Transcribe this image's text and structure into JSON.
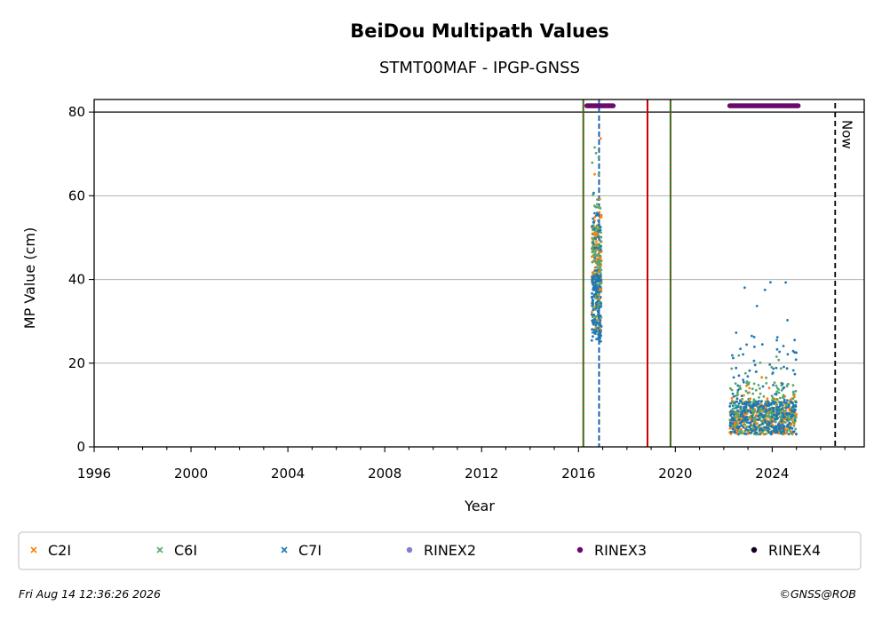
{
  "chart_data": {
    "type": "scatter",
    "title": "BeiDou Multipath Values",
    "subtitle": "STMT00MAF - IPGP-GNSS",
    "xlabel": "Year",
    "ylabel": "MP Value (cm)",
    "xlim": [
      1996.0,
      2027.8
    ],
    "ylim": [
      0,
      83
    ],
    "x_ticks": [
      "1996",
      "2000",
      "2004",
      "2008",
      "2012",
      "2016",
      "2020",
      "2024"
    ],
    "y_ticks": [
      "0",
      "20",
      "40",
      "60",
      "80"
    ],
    "grid": "horizontal",
    "legend_position": "bottom",
    "legend": [
      {
        "label": "C2I",
        "color": "#ff7f0e",
        "marker": "x"
      },
      {
        "label": "C6I",
        "color": "#55a868",
        "marker": "x"
      },
      {
        "label": "C7I",
        "color": "#1f77b4",
        "marker": "x"
      },
      {
        "label": "RINEX2",
        "color": "#7f7fcf",
        "marker": "o"
      },
      {
        "label": "RINEX3",
        "color": "#6a0a6a",
        "marker": "o"
      },
      {
        "label": "RINEX4",
        "color": "#1a0020",
        "marker": "o"
      }
    ],
    "series": [
      {
        "name": "C2I",
        "color": "#ff7f0e",
        "clusters": [
          {
            "x_start": 2016.55,
            "x_end": 2016.95,
            "y_min": 27,
            "y_max": 75,
            "y_center": 40
          },
          {
            "x_start": 2022.25,
            "x_end": 2025.0,
            "y_min": 3,
            "y_max": 17,
            "y_center": 6
          }
        ]
      },
      {
        "name": "C6I",
        "color": "#55a868",
        "clusters": [
          {
            "x_start": 2016.55,
            "x_end": 2016.95,
            "y_min": 27,
            "y_max": 78,
            "y_center": 40
          },
          {
            "x_start": 2022.25,
            "x_end": 2025.0,
            "y_min": 3,
            "y_max": 22,
            "y_center": 7
          }
        ]
      },
      {
        "name": "C7I",
        "color": "#1f77b4",
        "clusters": [
          {
            "x_start": 2016.55,
            "x_end": 2016.95,
            "y_min": 25,
            "y_max": 75,
            "y_center": 33
          },
          {
            "x_start": 2022.25,
            "x_end": 2025.0,
            "y_min": 3,
            "y_max": 42,
            "y_center": 7
          }
        ]
      }
    ],
    "rinex3_bars": [
      {
        "x_start": 2016.35,
        "x_end": 2017.45,
        "y": 81.5
      },
      {
        "x_start": 2022.25,
        "x_end": 2025.1,
        "y": 81.5
      }
    ],
    "vertical_lines": [
      {
        "x": 2016.2,
        "style": "green-red-dashed"
      },
      {
        "x": 2016.85,
        "style": "blue-dashed"
      },
      {
        "x": 2018.85,
        "style": "red-solid"
      },
      {
        "x": 2019.8,
        "style": "green-red-dashed"
      },
      {
        "x": 2026.6,
        "style": "black-dashed",
        "label": "Now"
      }
    ],
    "reference_line_y": 80
  },
  "footer": {
    "timestamp": "Fri Aug 14 12:36:26 2026",
    "copyright": "©GNSS@ROB"
  }
}
